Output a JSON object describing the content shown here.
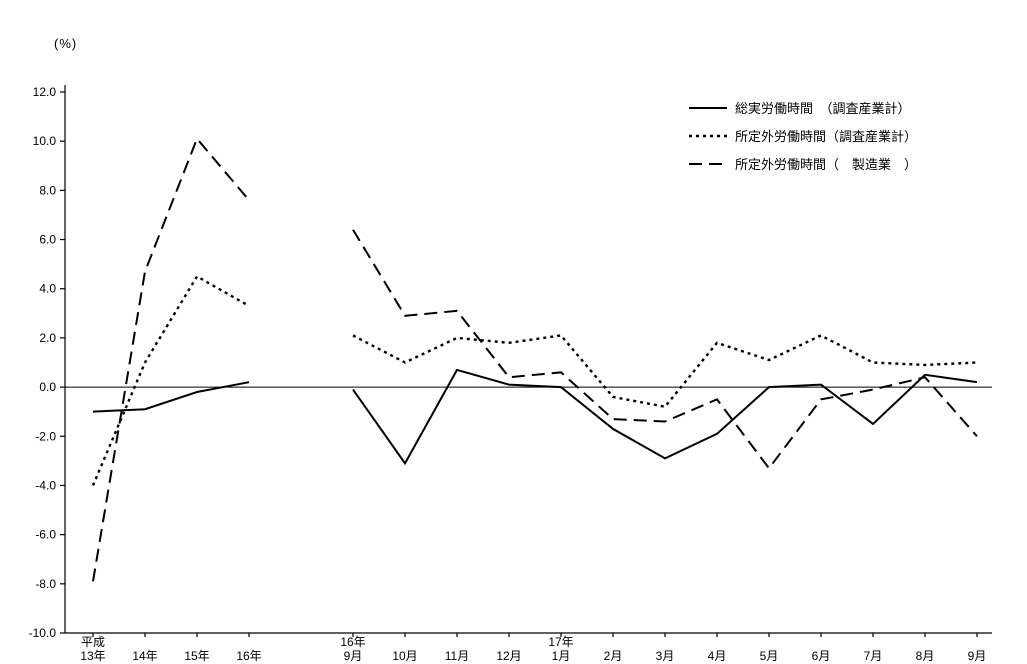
{
  "page": {
    "background_color": "#ffffff",
    "line_color": "#000000"
  },
  "chart_data": {
    "type": "line",
    "title": "",
    "unit_label": "(%)",
    "xlabel": "",
    "ylabel": "(%)",
    "ylim": [
      -10.0,
      12.0
    ],
    "ytick_step": 2.0,
    "yticks": [
      12.0,
      10.0,
      8.0,
      6.0,
      4.0,
      2.0,
      0.0,
      -2.0,
      -4.0,
      -6.0,
      -8.0,
      -10.0
    ],
    "grid": "zero-line-only",
    "legend_position": "top-right",
    "groups": [
      {
        "key": "annual",
        "start_slot": 0,
        "categories": [
          {
            "top": "平成",
            "label": "13年"
          },
          "14年",
          "15年",
          "16年"
        ]
      },
      {
        "key": "monthly",
        "start_slot": 5,
        "categories": [
          {
            "top": "16年",
            "label": "9月"
          },
          "10月",
          "11月",
          "12月",
          {
            "top": "17年",
            "label": "1月"
          },
          "2月",
          "3月",
          "4月",
          "5月",
          "6月",
          "7月",
          "8月",
          "9月"
        ]
      }
    ],
    "series": [
      {
        "name": "総実労働時間　（調査産業計）",
        "line_style": "solid",
        "values": {
          "annual": [
            -1.0,
            -0.9,
            -0.2,
            0.2
          ],
          "monthly": [
            -0.1,
            -3.1,
            0.7,
            0.1,
            0.0,
            -1.7,
            -2.9,
            -1.9,
            0.0,
            0.1,
            -1.5,
            0.5,
            0.2
          ]
        }
      },
      {
        "name": "所定外労働時間（調査産業計）",
        "line_style": "dotted",
        "values": {
          "annual": [
            -4.0,
            1.0,
            4.5,
            3.3
          ],
          "monthly": [
            2.1,
            1.0,
            2.0,
            1.8,
            2.1,
            -0.4,
            -0.8,
            1.8,
            1.1,
            2.1,
            1.0,
            0.9,
            1.0
          ]
        }
      },
      {
        "name": "所定外労働時間（　製造業　）",
        "line_style": "dashed",
        "values": {
          "annual": [
            -7.9,
            4.7,
            10.1,
            7.6
          ],
          "monthly": [
            6.4,
            2.9,
            3.1,
            0.4,
            0.6,
            -1.3,
            -1.4,
            -0.5,
            -3.3,
            -0.5,
            -0.1,
            0.4,
            -2.0
          ]
        }
      }
    ]
  }
}
